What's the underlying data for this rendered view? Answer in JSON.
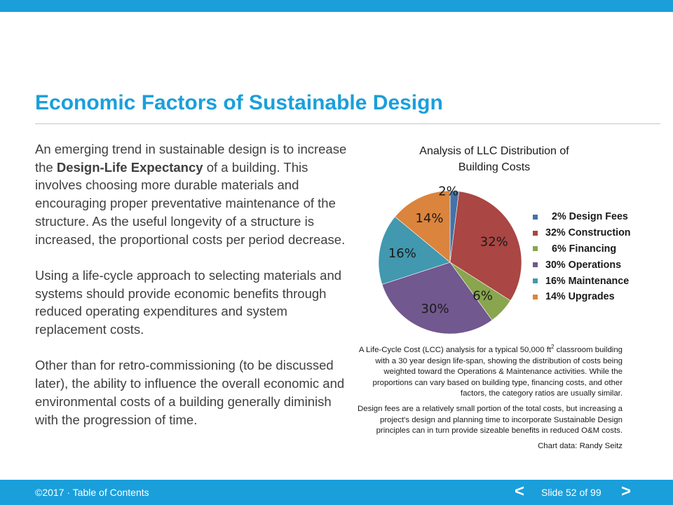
{
  "slide": {
    "title": "Economic Factors of Sustainable Design",
    "paragraphs": [
      {
        "before": "An emerging trend in sustainable design is to increase the ",
        "bold": "Design-Life Expectancy",
        "after": " of a building. This involves choosing more durable materials and encouraging proper preventative maintenance of the structure. As the useful longevity of a structure is increased, the proportional costs per period decrease."
      },
      {
        "text": "Using a life-cycle approach to selecting materials and systems should provide economic benefits through reduced operating expenditures and system replacement costs."
      },
      {
        "text": "Other than for retro-commissioning (to be discussed later), the ability to influence the overall economic and environmental costs of a building generally diminish with the progression of time."
      }
    ],
    "caption": {
      "p1_main": "A Life-Cycle Cost (LCC) analysis for a typical 50,000 ft",
      "p1_sup": "2",
      "p1_rest": " classroom building with a 30 year design life-span, showing the distribution of costs being weighted toward the Operations & Maintenance activities. While the proportions can vary based on building type, financing costs, and other factors, the category ratios are usually similar.",
      "p2": "Design fees are a relatively small portion of the total costs, but increasing a project's design and planning time to incorporate Sustainable Design principles can in turn provide sizeable benefits in reduced O&M costs.",
      "credit": "Chart data: Randy Seitz"
    }
  },
  "chart_data": {
    "type": "pie",
    "title": "Analysis of LLC Distribution of Building Costs",
    "title_lines": [
      "Analysis of LLC Distribution of",
      "Building Costs"
    ],
    "categories": [
      "Design Fees",
      "Construction",
      "Financing",
      "Operations",
      "Maintenance",
      "Upgrades"
    ],
    "values": [
      2,
      32,
      6,
      30,
      16,
      14
    ],
    "data_labels": [
      "2%",
      "32%",
      "6%",
      "30%",
      "16%",
      "14%"
    ],
    "legend_labels": [
      "2% Design Fees",
      "32% Construction",
      "6% Financing",
      "30% Operations",
      "16% Maintenance",
      "14% Upgrades"
    ],
    "colors": [
      "#4572a7",
      "#aa4643",
      "#89a54e",
      "#71588f",
      "#4198af",
      "#db843d"
    ],
    "legend_position": "right"
  },
  "footer": {
    "copyright": "©2017",
    "separator": " · ",
    "toc_link": "Table of Contents",
    "prev": "<",
    "slide_counter": "Slide 52 of 99",
    "next": ">"
  },
  "colors": {
    "accent": "#1a9fdb",
    "text": "#404040"
  }
}
